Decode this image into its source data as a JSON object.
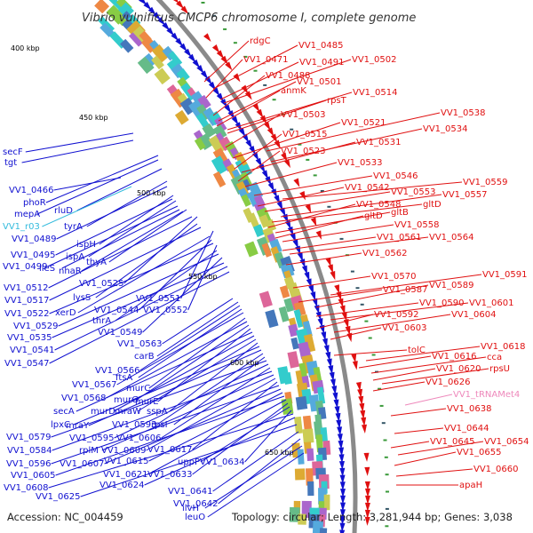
{
  "title": "Vibrio vulnificus CMCP6 chromosome I, complete genome",
  "footer": {
    "accession": "Accession: NC_004459",
    "summary": "Topology: circular; Length: 3,281,944 bp; Genes: 3,038"
  },
  "colors": {
    "backbone": "#8a8a8a",
    "forward": "#e01010",
    "reverse": "#1010d0",
    "rna": "#ee88bb",
    "rrna": "#33bbdd"
  },
  "kbp_ticks": [
    "400 kbp",
    "450 kbp",
    "500 kbp",
    "550 kbp",
    "600 kbp",
    "650 kbp"
  ],
  "left_labels": [
    "secF",
    "tgt",
    "VV1_0466",
    "phoR",
    "mepA",
    "rluD",
    "VV1_r03",
    "tyrA",
    "VV1_0489",
    "ispH",
    "VV1_0495",
    "ispA",
    "VV1_0499",
    "ileS",
    "nhaR",
    "thyA",
    "VV1_0512",
    "VV1_0525",
    "lysS",
    "VV1_0517",
    "VV1_0551",
    "xerD",
    "VV1_0544",
    "VV1_0522",
    "VV1_0552",
    "thrA",
    "VV1_0529",
    "VV1_0549",
    "VV1_0535",
    "VV1_0541",
    "VV1_0547",
    "VV1_0563",
    "carB",
    "VV1_0566",
    "ftsA",
    "VV1_0567",
    "murC",
    "VV1_0568",
    "murG",
    "murE",
    "secA",
    "murD",
    "mraW",
    "sspA",
    "lpxC",
    "mraY",
    "VV1_0593",
    "rpsI",
    "VV1_0579",
    "VV1_0595",
    "VV1_0606",
    "VV1_0584",
    "rplM",
    "VV1_0609",
    "VV1_0617",
    "VV1_0596",
    "VV1_0607",
    "VV1_0615",
    "VV1_0605",
    "VV1_0621",
    "VV1_0633",
    "uppP",
    "VV1_0634",
    "VV1_0608",
    "VV1_0624",
    "VV1_0625",
    "VV1_0641",
    "VV1_0642",
    "ilvH",
    "leuO"
  ],
  "right_labels": [
    "rdgC",
    "VV1_0485",
    "VV1_0471",
    "VV1_0491",
    "VV1_0502",
    "VV1_0488",
    "VV1_0501",
    "anmK",
    "VV1_0514",
    "rpsT",
    "VV1_0503",
    "VV1_0538",
    "VV1_0521",
    "VV1_0534",
    "VV1_0515",
    "VV1_0531",
    "VV1_0523",
    "VV1_0533",
    "VV1_0546",
    "VV1_0559",
    "VV1_0542",
    "VV1_0553",
    "VV1_0557",
    "gltD",
    "VV1_0548",
    "gltB",
    "gltD",
    "VV1_0558",
    "VV1_0561",
    "VV1_0564",
    "VV1_0562",
    "VV1_0570",
    "VV1_0591",
    "VV1_0587",
    "VV1_0589",
    "VV1_0590",
    "VV1_0601",
    "VV1_0592",
    "VV1_0604",
    "VV1_0603",
    "tolC",
    "VV1_0618",
    "VV1_0616",
    "cca",
    "VV1_0620",
    "rpsU",
    "VV1_0626",
    "VV1_tRNAMet4",
    "VV1_0638",
    "VV1_0644",
    "VV1_0645",
    "VV1_0654",
    "VV1_0655",
    "VV1_0660",
    "apaH"
  ]
}
